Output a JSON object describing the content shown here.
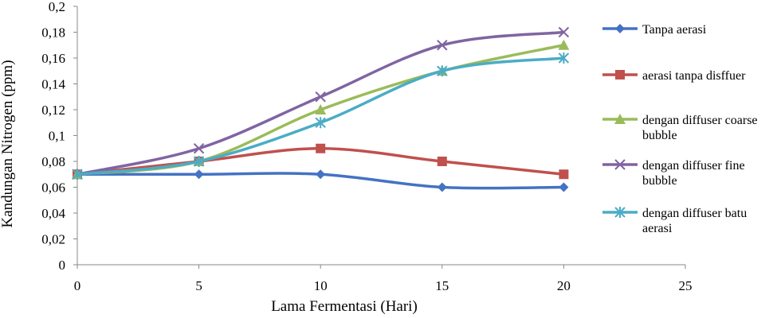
{
  "chart_data": {
    "type": "line",
    "title": "",
    "xlabel": "Lama Fermentasi (Hari)",
    "ylabel": "Kandungan Nitrogen (ppm)",
    "xlim": [
      0,
      25
    ],
    "ylim": [
      0,
      0.2
    ],
    "x_ticks": [
      0,
      5,
      10,
      15,
      20,
      25
    ],
    "y_ticks": [
      0,
      0.02,
      0.04,
      0.06,
      0.08,
      0.1,
      0.12,
      0.14,
      0.16,
      0.18,
      0.2
    ],
    "x_tick_labels": [
      "0",
      "5",
      "10",
      "15",
      "20",
      "25"
    ],
    "y_tick_labels": [
      "0",
      "0,02",
      "0,04",
      "0,06",
      "0,08",
      "0,1",
      "0,12",
      "0,14",
      "0,16",
      "0,18",
      "0,2"
    ],
    "grid": false,
    "legend_position": "right",
    "x": [
      0,
      5,
      10,
      15,
      20
    ],
    "series": [
      {
        "name": "Tanpa aerasi",
        "legend_lines": [
          "Tanpa aerasi"
        ],
        "color": "#4472C4",
        "marker": "diamond",
        "values": [
          0.07,
          0.07,
          0.07,
          0.06,
          0.06
        ]
      },
      {
        "name": "aerasi tanpa disffuer",
        "legend_lines": [
          "aerasi tanpa disffuer"
        ],
        "color": "#C0504D",
        "marker": "square",
        "values": [
          0.07,
          0.08,
          0.09,
          0.08,
          0.07
        ]
      },
      {
        "name": "dengan diffuser coarse bubble",
        "legend_lines": [
          "dengan diffuser coarse",
          "bubble"
        ],
        "color": "#9BBB59",
        "marker": "triangle",
        "values": [
          0.07,
          0.08,
          0.12,
          0.15,
          0.17
        ]
      },
      {
        "name": "dengan diffuser fine bubble",
        "legend_lines": [
          "dengan diffuser fine",
          "bubble"
        ],
        "color": "#8064A2",
        "marker": "x",
        "values": [
          0.07,
          0.09,
          0.13,
          0.17,
          0.18
        ]
      },
      {
        "name": "dengan diffuser batu aerasi",
        "legend_lines": [
          "dengan diffuser batu",
          "aerasi"
        ],
        "color": "#4BACC6",
        "marker": "star",
        "values": [
          0.07,
          0.08,
          0.11,
          0.15,
          0.16
        ]
      }
    ]
  }
}
